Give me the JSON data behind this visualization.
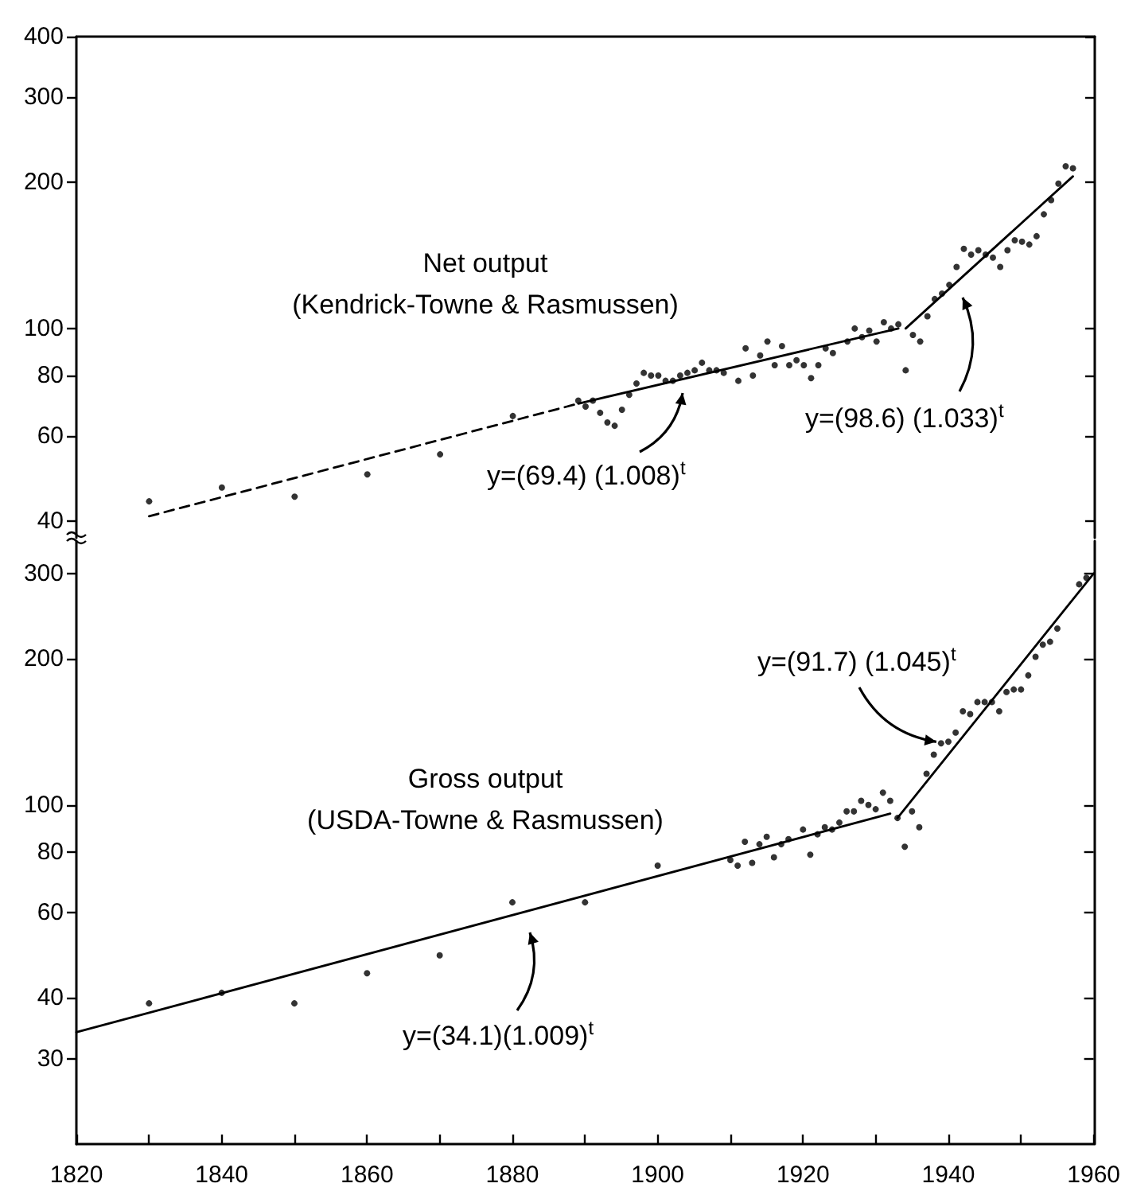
{
  "chart_data": [
    {
      "type": "scatter",
      "title": "Net output",
      "subtitle": "(Kendrick-Towne & Rasmussen)",
      "xlim": [
        1820,
        1960
      ],
      "ylim": [
        37,
        400
      ],
      "yticks": [
        40,
        60,
        80,
        100,
        200,
        300,
        400
      ],
      "log": "y",
      "tick_labels": "y",
      "grid": false,
      "series": [
        {
          "marker": "circle",
          "color": "#000000",
          "x": [
            1830,
            1840,
            1850,
            1860,
            1870,
            1880,
            1889,
            1890,
            1891,
            1892,
            1893,
            1894,
            1895,
            1896,
            1897,
            1898,
            1899,
            1900,
            1901,
            1902,
            1903,
            1904,
            1905,
            1906,
            1907,
            1908,
            1909,
            1911,
            1912,
            1913,
            1914,
            1915,
            1916,
            1917,
            1918,
            1919,
            1920,
            1921,
            1922,
            1923,
            1924,
            1926,
            1927,
            1928,
            1929,
            1930,
            1931,
            1932,
            1933,
            1934,
            1935,
            1936,
            1937,
            1938,
            1939,
            1940,
            1941,
            1942,
            1943,
            1944,
            1945,
            1946,
            1947,
            1948,
            1949,
            1950,
            1951,
            1952,
            1953,
            1954,
            1955,
            1956,
            1957
          ],
          "values": [
            44,
            47,
            45,
            50,
            55,
            66,
            71,
            69,
            71,
            67,
            64,
            63,
            68,
            73,
            77,
            81,
            80,
            80,
            78,
            78,
            80,
            81,
            82,
            85,
            82,
            82,
            81,
            78,
            91,
            80,
            88,
            94,
            84,
            92,
            84,
            86,
            84,
            79,
            84,
            91,
            89,
            94,
            100,
            96,
            99,
            94,
            103,
            100,
            102,
            82,
            97,
            94,
            106,
            115,
            118,
            123,
            134,
            146,
            142,
            145,
            142,
            140,
            134,
            145,
            152,
            151,
            149,
            155,
            172,
            184,
            199,
            216,
            214
          ]
        },
        {
          "type": "line",
          "marker": "none",
          "line_style": "dashed",
          "color": "#000000",
          "x": [
            1830,
            1889
          ],
          "values": [
            41,
            70
          ]
        },
        {
          "type": "line",
          "marker": "none",
          "line_style": "solid",
          "color": "#000000",
          "x": [
            1889,
            1933
          ],
          "values": [
            70,
            100
          ]
        },
        {
          "type": "line",
          "marker": "none",
          "line_style": "solid",
          "color": "#000000",
          "x": [
            1934,
            1957
          ],
          "values": [
            100,
            206
          ]
        }
      ],
      "annotations": [
        "y=(69.4) (1.008)$^{t}$",
        "y=(98.6) (1.033)$^{t}$"
      ]
    },
    {
      "type": "scatter",
      "title": "Gross output",
      "subtitle": "(USDA-Towne & Rasmussen)",
      "xlim": [
        1820,
        1960
      ],
      "xticks": [
        1820,
        {
          "value": 1830,
          "label": null
        },
        1840,
        {
          "value": 1850,
          "label": null
        },
        1860,
        {
          "value": 1870,
          "label": null
        },
        1880,
        {
          "value": 1890,
          "label": null
        },
        1900,
        {
          "value": 1910,
          "label": null
        },
        1920,
        {
          "value": 1930,
          "label": null
        },
        1940,
        {
          "value": 1950,
          "label": null
        },
        1960
      ],
      "ylim": [
        20,
        350
      ],
      "yticks": [
        30,
        40,
        60,
        80,
        100,
        200,
        300
      ],
      "log": "y",
      "grid": false,
      "series": [
        {
          "marker": "circle",
          "color": "#000000",
          "x": [
            1830,
            1840,
            1850,
            1860,
            1870,
            1880,
            1890,
            1900,
            1910,
            1911,
            1912,
            1913,
            1914,
            1915,
            1916,
            1917,
            1918,
            1920,
            1921,
            1922,
            1923,
            1924,
            1925,
            1926,
            1927,
            1928,
            1929,
            1930,
            1931,
            1932,
            1933,
            1934,
            1935,
            1936,
            1937,
            1938,
            1939,
            1940,
            1941,
            1942,
            1943,
            1944,
            1945,
            1946,
            1947,
            1948,
            1949,
            1950,
            1951,
            1952,
            1953,
            1954,
            1955,
            1958,
            1959
          ],
          "values": [
            39,
            41,
            39,
            45,
            49,
            63,
            63,
            75,
            77,
            75,
            84,
            76,
            83,
            86,
            78,
            83,
            85,
            89,
            79,
            87,
            90,
            89,
            92,
            97,
            97,
            102,
            100,
            98,
            106,
            102,
            94,
            82,
            97,
            90,
            116,
            127,
            134,
            135,
            141,
            156,
            154,
            163,
            163,
            163,
            156,
            171,
            173,
            173,
            185,
            202,
            214,
            217,
            231,
            285,
            294
          ]
        },
        {
          "type": "line",
          "marker": "none",
          "line_style": "solid",
          "color": "#000000",
          "x": [
            1820,
            1932
          ],
          "values": [
            34,
            96
          ]
        },
        {
          "type": "line",
          "marker": "none",
          "line_style": "solid",
          "color": "#000000",
          "x": [
            1933,
            1960
          ],
          "values": [
            94,
            300
          ]
        }
      ],
      "annotations": [
        "y=(34.1)(1.009)$^{t}$",
        {
          "text": "y=(91.7) (1.045)$^{t}$",
          "x": 1939,
          "y": 135
        }
      ]
    }
  ]
}
